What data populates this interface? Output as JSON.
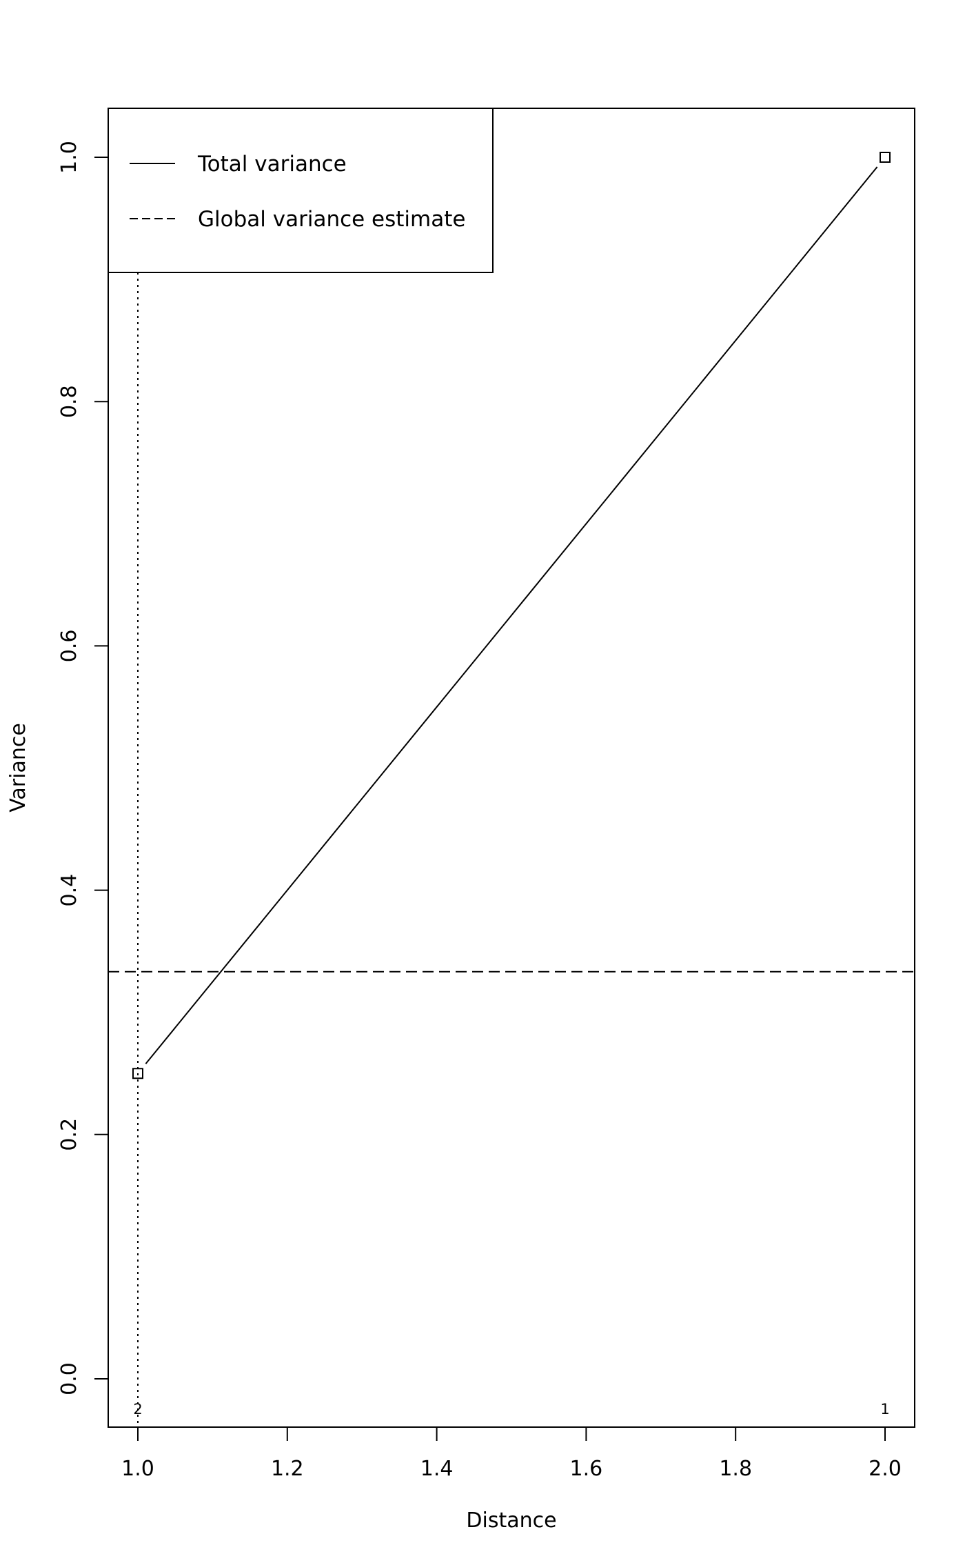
{
  "chart_data": {
    "type": "line",
    "xlabel": "Distance",
    "ylabel": "Variance",
    "xlim": [
      0.96,
      2.04
    ],
    "ylim": [
      -0.04,
      1.04
    ],
    "x_ticks": [
      "1.0",
      "1.2",
      "1.4",
      "1.6",
      "1.8",
      "2.0"
    ],
    "y_ticks": [
      "0.0",
      "0.2",
      "0.4",
      "0.6",
      "0.8",
      "1.0"
    ],
    "grid": false,
    "legend_position": "top-left",
    "series": [
      {
        "name": "Total variance",
        "style": "solid",
        "marker": "square",
        "x": [
          1,
          2
        ],
        "y": [
          0.25,
          1.0
        ]
      },
      {
        "name": "Global variance estimate",
        "style": "dashed",
        "y_constant": 0.3333
      }
    ],
    "reference_lines": [
      {
        "style": "dotted",
        "x": 1
      }
    ],
    "point_labels": [
      {
        "x": 1,
        "text": "2"
      },
      {
        "x": 2,
        "text": "1"
      }
    ],
    "color": "#000000"
  }
}
